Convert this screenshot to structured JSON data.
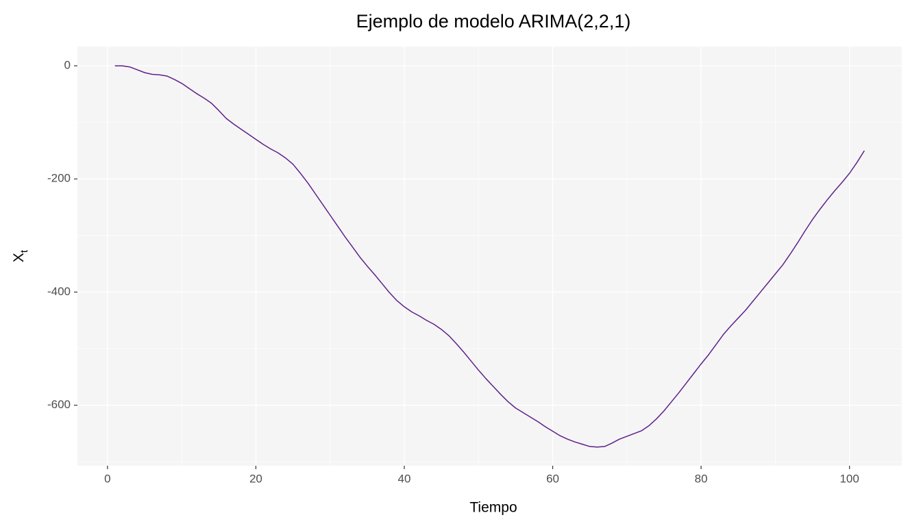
{
  "chart_data": {
    "type": "line",
    "title": "Ejemplo de modelo ARIMA(2,2,1)",
    "x_label": "Tiempo",
    "y_label": "X",
    "y_label_subscript": "t",
    "x": [
      1,
      2,
      3,
      4,
      5,
      6,
      7,
      8,
      9,
      10,
      11,
      12,
      13,
      14,
      15,
      16,
      17,
      18,
      19,
      20,
      21,
      22,
      23,
      24,
      25,
      26,
      27,
      28,
      29,
      30,
      31,
      32,
      33,
      34,
      35,
      36,
      37,
      38,
      39,
      40,
      41,
      42,
      43,
      44,
      45,
      46,
      47,
      48,
      49,
      50,
      51,
      52,
      53,
      54,
      55,
      56,
      57,
      58,
      59,
      60,
      61,
      62,
      63,
      64,
      65,
      66,
      67,
      68,
      69,
      70,
      71,
      72,
      73,
      74,
      75,
      76,
      77,
      78,
      79,
      80,
      81,
      82,
      83,
      84,
      85,
      86,
      87,
      88,
      89,
      90,
      91,
      92,
      93,
      94,
      95,
      96,
      97,
      98,
      99,
      100,
      101,
      102
    ],
    "series": [
      {
        "color": "#5e1f8a",
        "values": [
          0,
          0,
          -2,
          -7,
          -12,
          -15,
          -16,
          -18,
          -24,
          -31,
          -40,
          -49,
          -57,
          -66,
          -79,
          -93,
          -103,
          -112,
          -121,
          -130,
          -139,
          -147,
          -154,
          -163,
          -174,
          -190,
          -207,
          -226,
          -245,
          -264,
          -283,
          -302,
          -320,
          -338,
          -354,
          -369,
          -385,
          -401,
          -415,
          -426,
          -435,
          -442,
          -450,
          -457,
          -466,
          -477,
          -491,
          -506,
          -522,
          -538,
          -553,
          -567,
          -581,
          -594,
          -605,
          -613,
          -621,
          -629,
          -638,
          -646,
          -654,
          -660,
          -665,
          -669,
          -673,
          -674,
          -673,
          -667,
          -660,
          -655,
          -650,
          -645,
          -636,
          -624,
          -610,
          -594,
          -578,
          -561,
          -544,
          -527,
          -511,
          -493,
          -475,
          -460,
          -446,
          -432,
          -416,
          -400,
          -384,
          -368,
          -352,
          -333,
          -313,
          -292,
          -272,
          -254,
          -237,
          -221,
          -206,
          -190,
          -171,
          -150
        ]
      }
    ],
    "xlim": [
      -4.05,
      107.05
    ],
    "ylim": [
      -707,
      34
    ],
    "xticks": [
      0,
      20,
      40,
      60,
      80,
      100
    ],
    "yticks": [
      -600,
      -400,
      -200,
      0
    ],
    "grid": true,
    "panel_color": "#f5f5f5"
  }
}
